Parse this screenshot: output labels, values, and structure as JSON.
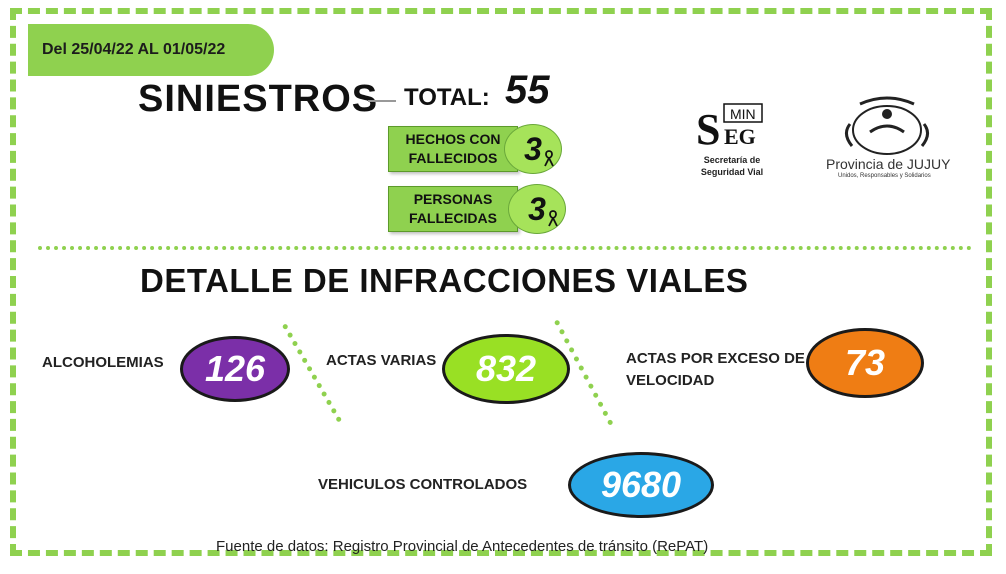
{
  "date_range": "Del 25/04/22  AL 01/05/22",
  "siniestros": {
    "title": "SINIESTROS",
    "total_label": "TOTAL:",
    "total_value": "55",
    "hechos_line1": "HECHOS CON",
    "hechos_line2": "FALLECIDOS",
    "hechos_value": "3",
    "personas_line1": "PERSONAS",
    "personas_line2": "FALLECIDAS",
    "personas_value": "3"
  },
  "logos": {
    "seg_line1": "Secretaría de",
    "seg_line2": "Seguridad Vial",
    "jujuy_title": "Provincia de JUJUY",
    "jujuy_sub": "Unidos, Responsables y Solidarios"
  },
  "infracciones": {
    "title": "DETALLE DE INFRACCIONES VIALES",
    "alcoholemias_label": "ALCOHOLEMIAS",
    "alcoholemias_value": "126",
    "actas_varias_label": "ACTAS VARIAS",
    "actas_varias_value": "832",
    "exceso_line1": "ACTAS POR EXCESO DE",
    "exceso_line2": "VELOCIDAD",
    "exceso_value": "73",
    "vehiculos_label": "VEHICULOS CONTROLADOS",
    "vehiculos_value": "9680"
  },
  "source": "Fuente de datos: Registro Provincial de Antecedentes de tránsito (RePAT)",
  "colors": {
    "accent_green": "#8fd14f",
    "purple": "#7b2fa8",
    "lime": "#99e024",
    "orange": "#ef7d14",
    "blue": "#2aa7e6"
  }
}
